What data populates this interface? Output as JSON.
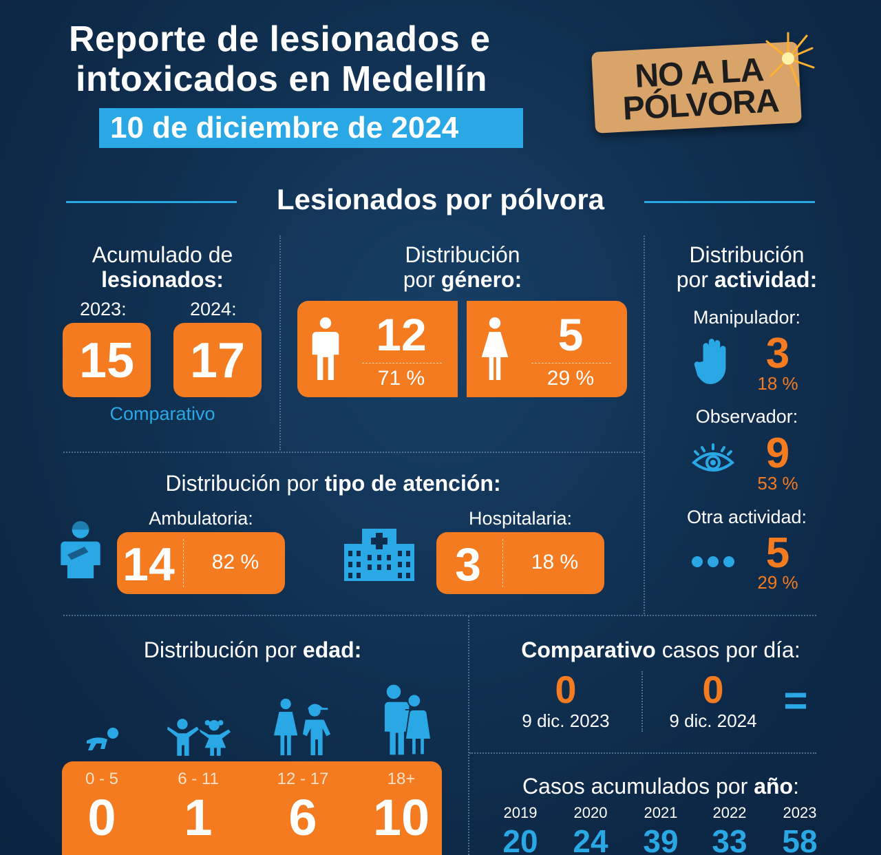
{
  "header": {
    "title_line1": "Reporte de lesionados e",
    "title_line2": "intoxicados en Medellín",
    "date": "10 de diciembre de 2024",
    "sign_line1": "NO A LA",
    "sign_line2": "PÓLVORA"
  },
  "section_title": "Lesionados por pólvora",
  "accumulated": {
    "heading_line1": "Acumulado de",
    "heading_line2": "lesionados:",
    "year1_label": "2023:",
    "year1_value": "15",
    "year2_label": "2024:",
    "year2_value": "17",
    "caption": "Comparativo"
  },
  "gender": {
    "heading_line1": "Distribución",
    "heading_line2_prefix": "por ",
    "heading_line2_bold": "género:",
    "male_value": "12",
    "male_percent": "71 %",
    "female_value": "5",
    "female_percent": "29 %"
  },
  "activity": {
    "heading_line1": "Distribución",
    "heading_line2_prefix": "por ",
    "heading_line2_bold": "actividad:",
    "items": [
      {
        "label": "Manipulador:",
        "value": "3",
        "percent": "18 %",
        "icon": "hand-icon"
      },
      {
        "label": "Observador:",
        "value": "9",
        "percent": "53 %",
        "icon": "eye-icon"
      },
      {
        "label": "Otra actividad:",
        "value": "5",
        "percent": "29 %",
        "icon": "dots-icon"
      }
    ]
  },
  "attention": {
    "heading_prefix": "Distribución por ",
    "heading_bold": "tipo de atención:",
    "ambulatory_label": "Ambulatoria:",
    "ambulatory_value": "14",
    "ambulatory_percent": "82 %",
    "hospital_label": "Hospitalaria:",
    "hospital_value": "3",
    "hospital_percent": "18 %"
  },
  "age": {
    "heading_prefix": "Distribución por ",
    "heading_bold": "edad:",
    "groups": [
      {
        "range": "0 - 5",
        "value": "0"
      },
      {
        "range": "6 - 11",
        "value": "1"
      },
      {
        "range": "12 - 17",
        "value": "6"
      },
      {
        "range": "18+",
        "value": "10"
      }
    ]
  },
  "daily": {
    "heading_bold": "Comparativo",
    "heading_rest": " casos por día:",
    "left_value": "0",
    "left_date": "9 dic. 2023",
    "right_value": "0",
    "right_date": "9 dic. 2024",
    "equal_sign": "="
  },
  "yearly": {
    "heading_prefix": "Casos acumulados por ",
    "heading_bold": "año",
    "heading_suffix": ":",
    "years": [
      {
        "year": "2019",
        "value": "20"
      },
      {
        "year": "2020",
        "value": "24"
      },
      {
        "year": "2021",
        "value": "39"
      },
      {
        "year": "2022",
        "value": "33"
      },
      {
        "year": "2023",
        "value": "58"
      }
    ]
  },
  "colors": {
    "orange": "#f47b20",
    "blue": "#2aa8e6",
    "background": "#0f2d4d"
  }
}
